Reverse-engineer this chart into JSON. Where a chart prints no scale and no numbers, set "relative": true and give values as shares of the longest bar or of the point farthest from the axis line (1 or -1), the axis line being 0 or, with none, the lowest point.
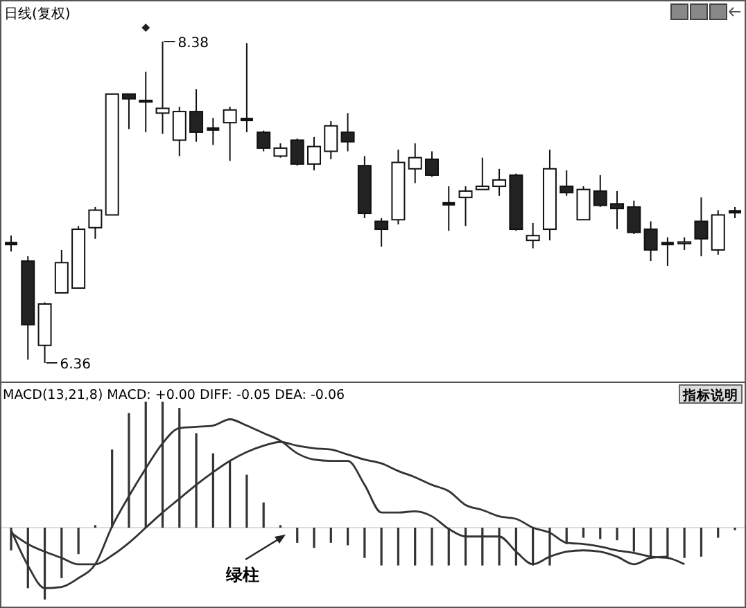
{
  "chart_data": [
    {
      "type": "candlestick",
      "title": "日线(复权)",
      "categories": [
        null,
        null,
        null,
        null,
        null,
        null,
        null,
        null,
        null,
        null,
        null,
        null,
        null,
        null,
        null,
        null,
        null,
        null,
        null,
        null,
        null,
        null,
        null,
        null,
        null,
        null,
        null,
        null,
        null,
        null,
        null,
        null,
        null,
        null,
        null,
        null,
        null,
        null,
        null,
        null,
        null,
        null,
        null,
        null
      ],
      "ohlc": [
        [
          7.11,
          7.16,
          7.06,
          7.11
        ],
        [
          7.0,
          7.03,
          6.38,
          6.6
        ],
        [
          6.47,
          6.74,
          6.36,
          6.73
        ],
        [
          6.8,
          7.07,
          6.8,
          6.99
        ],
        [
          6.83,
          7.22,
          6.83,
          7.2
        ],
        [
          7.21,
          7.34,
          7.14,
          7.32
        ],
        [
          7.29,
          8.05,
          7.29,
          8.05
        ],
        [
          8.05,
          8.05,
          7.83,
          8.02
        ],
        [
          8.01,
          8.19,
          7.81,
          8.0
        ],
        [
          7.93,
          8.38,
          7.8,
          7.96
        ],
        [
          7.76,
          7.97,
          7.66,
          7.94
        ],
        [
          7.94,
          8.08,
          7.75,
          7.81
        ],
        [
          7.83,
          7.9,
          7.73,
          7.83
        ],
        [
          7.87,
          7.97,
          7.63,
          7.95
        ],
        [
          7.89,
          8.37,
          7.81,
          7.89
        ],
        [
          7.81,
          7.82,
          7.69,
          7.71
        ],
        [
          7.66,
          7.74,
          7.65,
          7.71
        ],
        [
          7.76,
          7.77,
          7.6,
          7.61
        ],
        [
          7.61,
          7.78,
          7.57,
          7.72
        ],
        [
          7.69,
          7.88,
          7.64,
          7.85
        ],
        [
          7.81,
          7.93,
          7.69,
          7.75
        ],
        [
          7.6,
          7.66,
          7.27,
          7.3
        ],
        [
          7.25,
          7.27,
          7.09,
          7.2
        ],
        [
          7.26,
          7.7,
          7.23,
          7.62
        ],
        [
          7.58,
          7.74,
          7.49,
          7.65
        ],
        [
          7.64,
          7.69,
          7.53,
          7.54
        ],
        [
          7.36,
          7.47,
          7.19,
          7.36
        ],
        [
          7.4,
          7.47,
          7.22,
          7.44
        ],
        [
          7.45,
          7.65,
          7.45,
          7.47
        ],
        [
          7.47,
          7.58,
          7.41,
          7.51
        ],
        [
          7.54,
          7.55,
          7.19,
          7.2
        ],
        [
          7.13,
          7.24,
          7.08,
          7.16
        ],
        [
          7.2,
          7.7,
          7.13,
          7.58
        ],
        [
          7.47,
          7.57,
          7.41,
          7.43
        ],
        [
          7.26,
          7.47,
          7.26,
          7.45
        ],
        [
          7.44,
          7.54,
          7.34,
          7.35
        ],
        [
          7.36,
          7.44,
          7.2,
          7.33
        ],
        [
          7.34,
          7.38,
          7.17,
          7.18
        ],
        [
          7.2,
          7.25,
          7.0,
          7.07
        ],
        [
          7.11,
          7.15,
          6.97,
          7.11
        ],
        [
          7.11,
          7.15,
          7.07,
          7.12
        ],
        [
          7.25,
          7.4,
          7.03,
          7.14
        ],
        [
          7.07,
          7.32,
          7.04,
          7.29
        ],
        [
          7.31,
          7.34,
          7.27,
          7.31
        ]
      ],
      "annotations": [
        "8.38",
        "6.36"
      ]
    },
    {
      "type": "line",
      "title": "MACD(13,21,8) MACD: +0.00 DIFF: -0.05 DEA: -0.06",
      "relative": true,
      "categories": [
        null,
        null,
        null,
        null,
        null,
        null,
        null,
        null,
        null,
        null,
        null,
        null,
        null,
        null,
        null,
        null,
        null,
        null,
        null,
        null,
        null,
        null,
        null,
        null,
        null,
        null,
        null,
        null,
        null,
        null,
        null,
        null,
        null,
        null,
        null,
        null,
        null,
        null,
        null,
        null,
        null,
        null,
        null,
        null
      ],
      "series": [
        {
          "type": "bar",
          "color": "#333333",
          "values": [
            -0.18,
            -0.48,
            -0.57,
            -0.4,
            -0.21,
            0.02,
            0.62,
            0.91,
            1,
            1,
            0.95,
            0.75,
            0.59,
            0.53,
            0.42,
            0.2,
            0.02,
            -0.12,
            -0.16,
            -0.12,
            -0.14,
            -0.24,
            -0.3,
            -0.3,
            -0.3,
            -0.3,
            -0.3,
            -0.3,
            -0.3,
            -0.3,
            -0.3,
            -0.3,
            -0.3,
            -0.13,
            -0.08,
            -0.09,
            -0.1,
            -0.19,
            -0.24,
            -0.24,
            -0.24,
            -0.23,
            -0.08,
            -0.02
          ]
        },
        {
          "type": "line",
          "color": "#333333",
          "values": [
            -0.02,
            -0.3,
            -0.48,
            -0.47,
            -0.4,
            -0.29,
            0.01,
            0.25,
            0.47,
            0.67,
            0.79,
            0.8,
            0.81,
            0.86,
            0.81,
            0.75,
            0.69,
            0.59,
            0.54,
            0.53,
            0.53,
            0.34,
            0.12,
            0.12,
            0.13,
            0.09,
            -0.01,
            -0.07,
            -0.07,
            -0.07,
            -0.19,
            -0.29,
            -0.23,
            -0.19,
            -0.18,
            -0.19,
            -0.23,
            -0.29,
            -0.24,
            -0.23,
            null,
            null,
            null,
            null
          ]
        },
        {
          "type": "line",
          "color": "#333333",
          "values": [
            -0.04,
            -0.13,
            -0.19,
            -0.24,
            -0.29,
            -0.29,
            -0.22,
            -0.12,
            0,
            0.12,
            0.23,
            0.34,
            0.44,
            0.53,
            0.6,
            0.65,
            0.68,
            0.65,
            0.63,
            0.62,
            0.58,
            0.54,
            0.51,
            0.45,
            0.4,
            0.34,
            0.29,
            0.18,
            0.14,
            0.09,
            0.07,
            0,
            -0.04,
            -0.12,
            -0.13,
            -0.15,
            -0.18,
            -0.2,
            -0.23,
            -0.24,
            -0.29,
            null,
            null,
            null
          ]
        }
      ],
      "annotations": [
        "指标说明",
        "绿柱"
      ]
    }
  ]
}
